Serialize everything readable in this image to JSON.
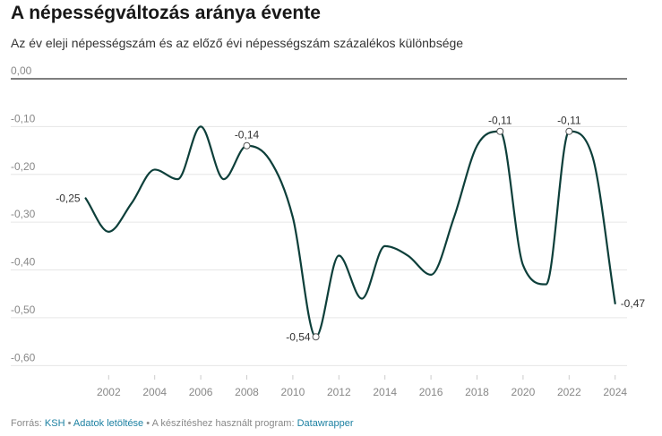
{
  "header": {
    "title": "A népességváltozás aránya évente",
    "subtitle": "Az év eleji népességszám és az előző évi népességszám százalékos különbsége"
  },
  "footer": {
    "source_prefix": "Forrás:",
    "source_link": "KSH",
    "separator": "•",
    "download_link": "Adatok letöltése",
    "program_prefix": "A készítéshez használt program:",
    "program_link": "Datawrapper"
  },
  "colors": {
    "line": "#0d3f3a",
    "grid": "#e6e6e6",
    "zero_line": "#333333",
    "tick_text": "#888888",
    "label_text": "#333333",
    "link": "#1d81a2"
  },
  "chart_data": {
    "type": "line",
    "title": "A népességváltozás aránya évente",
    "subtitle": "Az év eleji népességszám és az előző évi népességszám százalékos különbsége",
    "xlabel": "",
    "ylabel": "",
    "x": [
      2001,
      2002,
      2003,
      2004,
      2005,
      2006,
      2007,
      2008,
      2009,
      2010,
      2011,
      2012,
      2013,
      2014,
      2015,
      2016,
      2017,
      2018,
      2019,
      2020,
      2021,
      2022,
      2023,
      2024
    ],
    "series": [
      {
        "values": [
          -0.25,
          -0.32,
          -0.26,
          -0.19,
          -0.21,
          -0.1,
          -0.21,
          -0.14,
          -0.17,
          -0.29,
          -0.54,
          -0.37,
          -0.46,
          -0.35,
          -0.37,
          -0.41,
          -0.29,
          -0.14,
          -0.11,
          -0.39,
          -0.43,
          -0.11,
          -0.16,
          -0.47
        ]
      }
    ],
    "xlim": [
      2000,
      2024.5
    ],
    "ylim": [
      -0.62,
      0.0
    ],
    "x_ticks": [
      2002,
      2004,
      2006,
      2008,
      2010,
      2012,
      2014,
      2016,
      2018,
      2020,
      2022,
      2024
    ],
    "x_tick_labels": [
      "2002",
      "2004",
      "2006",
      "2008",
      "2010",
      "2012",
      "2014",
      "2016",
      "2018",
      "2020",
      "2022",
      "2024"
    ],
    "y_ticks": [
      0.0,
      -0.1,
      -0.2,
      -0.3,
      -0.4,
      -0.5,
      -0.6
    ],
    "y_tick_labels": [
      "0,00",
      "-0,10",
      "-0,20",
      "-0,30",
      "-0,40",
      "-0,50",
      "-0,60"
    ],
    "grid": true,
    "annotations": [
      {
        "x": 2001,
        "y": -0.25,
        "text": "-0,25",
        "position": "left",
        "marker": false
      },
      {
        "x": 2008,
        "y": -0.14,
        "text": "-0,14",
        "position": "top",
        "marker": true
      },
      {
        "x": 2011,
        "y": -0.54,
        "text": "-0,54",
        "position": "left",
        "marker": true
      },
      {
        "x": 2019,
        "y": -0.11,
        "text": "-0,11",
        "position": "top",
        "marker": true
      },
      {
        "x": 2022,
        "y": -0.11,
        "text": "-0,11",
        "position": "top",
        "marker": true
      },
      {
        "x": 2024,
        "y": -0.47,
        "text": "-0,47",
        "position": "right",
        "marker": false
      }
    ]
  }
}
